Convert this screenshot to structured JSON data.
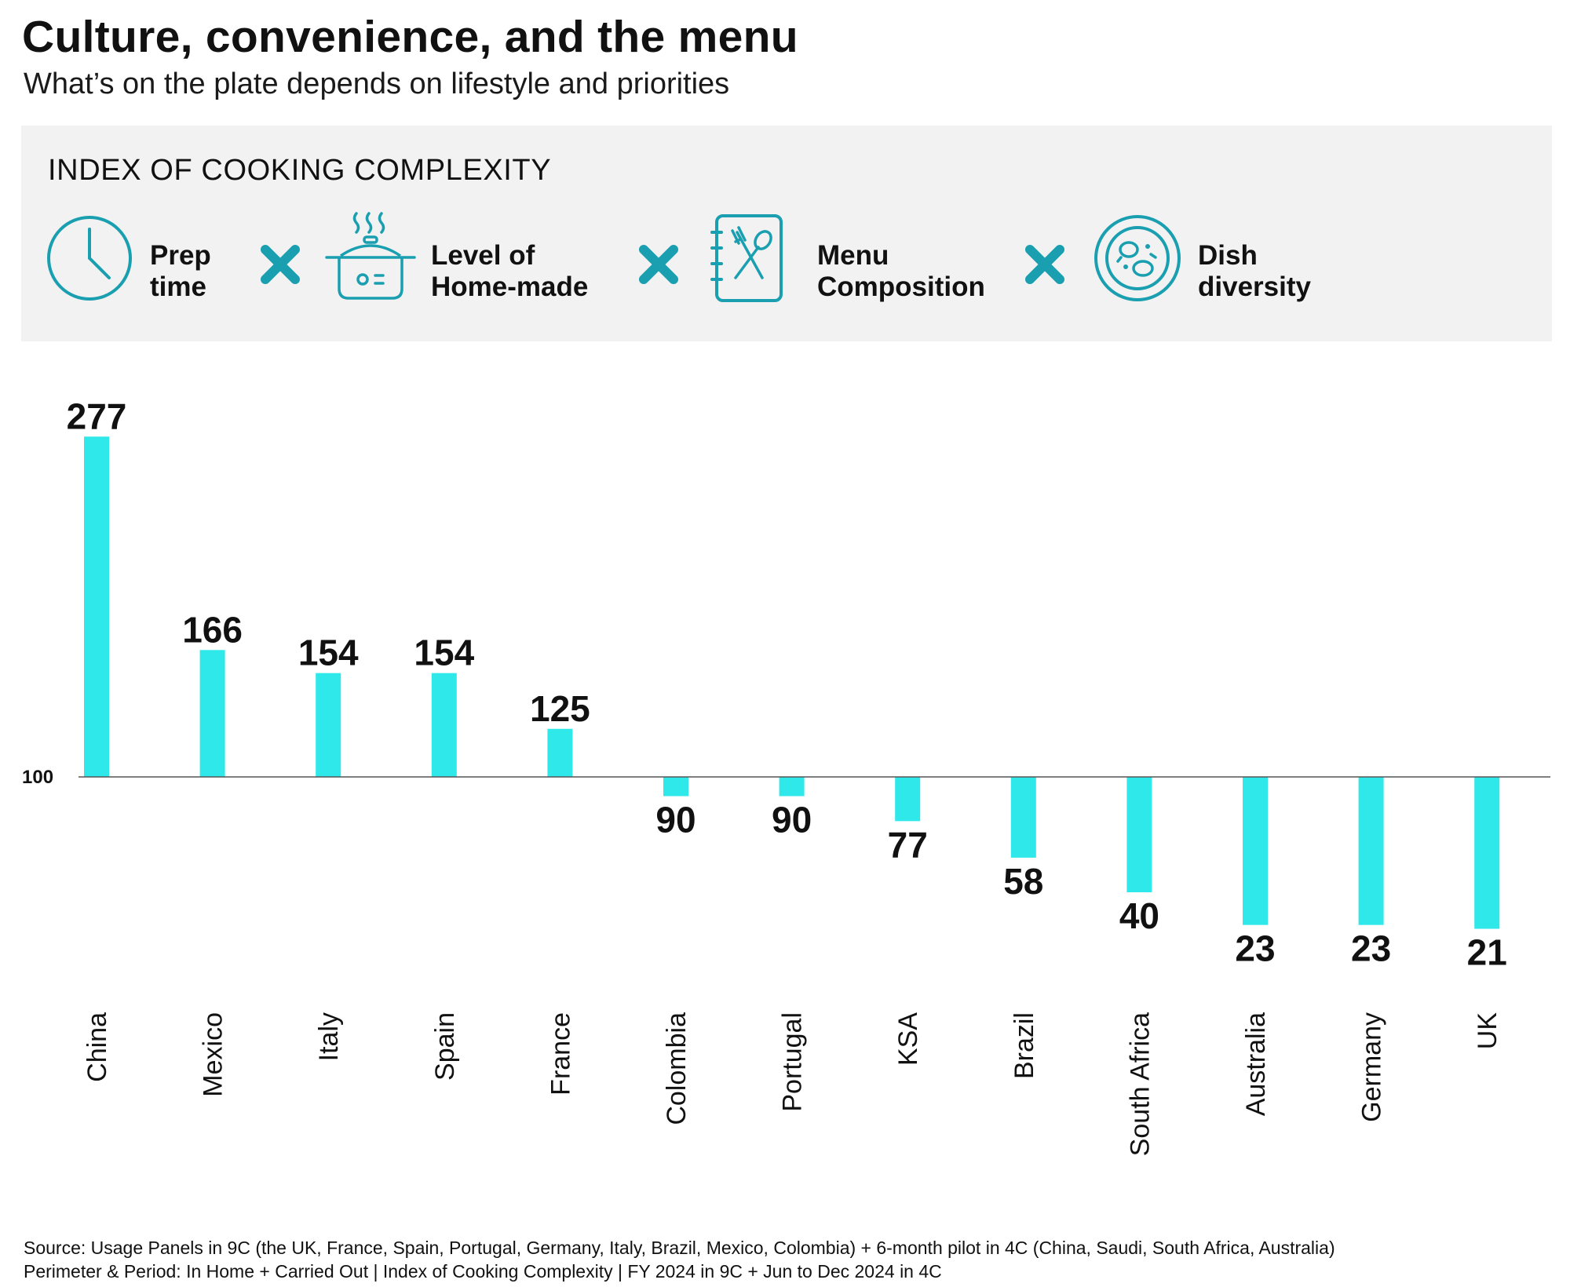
{
  "header": {
    "title": "Culture, convenience, and the menu",
    "subtitle": "What’s on the plate depends on lifestyle and priorities"
  },
  "panel": {
    "title": "INDEX OF COOKING COMPLEXITY",
    "factors": [
      {
        "label": "Prep\ntime",
        "icon": "clock-icon"
      },
      {
        "label": "Level of\nHome-made",
        "icon": "cooking-pot-icon"
      },
      {
        "label": "Menu\nComposition",
        "icon": "menu-book-icon"
      },
      {
        "label": "Dish\ndiversity",
        "icon": "plate-icon"
      }
    ],
    "operator_icon": "multiply-icon",
    "accent_color": "#1a9fb0"
  },
  "chart_data": {
    "type": "bar",
    "baseline": 100,
    "baseline_label": "100",
    "categories": [
      "China",
      "Mexico",
      "Italy",
      "Spain",
      "France",
      "Colombia",
      "Portugal",
      "KSA",
      "Brazil",
      "South Africa",
      "Australia",
      "Germany",
      "UK"
    ],
    "values": [
      277,
      166,
      154,
      154,
      125,
      90,
      90,
      77,
      58,
      40,
      23,
      23,
      21
    ],
    "bar_color": "#2ee8ea",
    "grid": false,
    "legend": "none"
  },
  "footer": {
    "source": "Source: Usage Panels in 9C (the UK, France, Spain, Portugal, Germany, Italy, Brazil, Mexico, Colombia) + 6-month pilot in 4C (China, Saudi, South Africa, Australia)",
    "perimeter": "Perimeter & Period: In Home + Carried Out | Index of Cooking Complexity | FY 2024  in 9C + Jun to Dec 2024 in 4C"
  }
}
